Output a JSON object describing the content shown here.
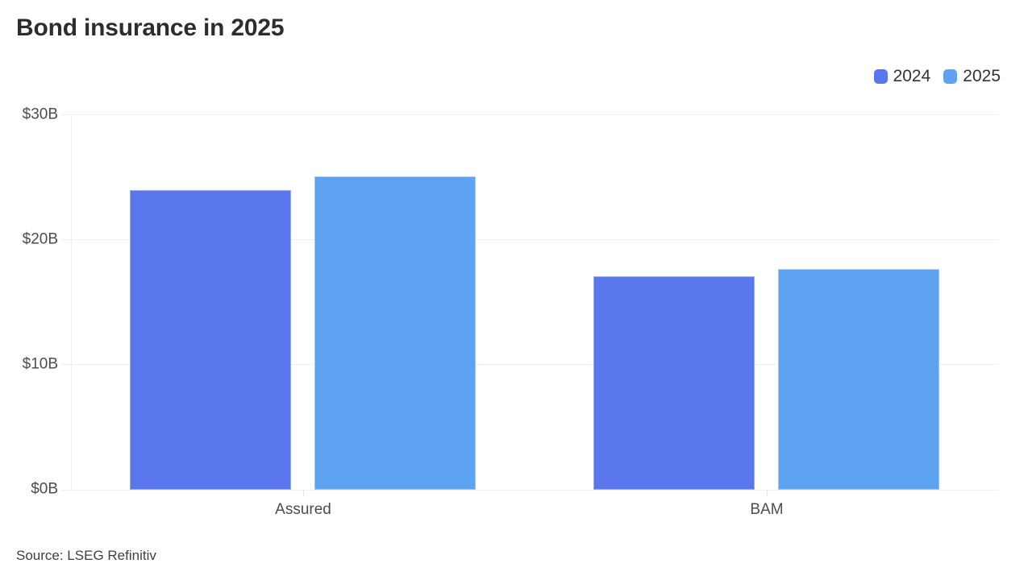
{
  "header": {
    "title": "Bond insurance in 2025"
  },
  "legend": {
    "items": [
      {
        "label": "2024",
        "color": "#5a76eb"
      },
      {
        "label": "2025",
        "color": "#5ea3f1"
      }
    ]
  },
  "chart_data": {
    "type": "bar",
    "title": "Bond insurance in 2025",
    "categories": [
      "Assured",
      "BAM"
    ],
    "series": [
      {
        "name": "2024",
        "color": "#5a76eb",
        "values": [
          24.0,
          17.1
        ]
      },
      {
        "name": "2025",
        "color": "#5ea3f1",
        "values": [
          25.1,
          17.7
        ]
      }
    ],
    "xlabel": "",
    "ylabel": "",
    "ylim": [
      0,
      30
    ],
    "yticks": [
      {
        "value": 0,
        "label": "$0B"
      },
      {
        "value": 10,
        "label": "$10B"
      },
      {
        "value": 20,
        "label": "$20B"
      },
      {
        "value": 30,
        "label": "$30B"
      }
    ],
    "grid": true,
    "legend_position": "top-right",
    "value_unit": "billions USD"
  },
  "footer": {
    "source": "Source: LSEG Refinitiv"
  },
  "colors": {
    "series_2024": "#5a76eb",
    "series_2025": "#5ea3f1",
    "gridline": "#f0f0f0",
    "axis_text": "#4d4d4d",
    "title_text": "#2d2d2d"
  }
}
